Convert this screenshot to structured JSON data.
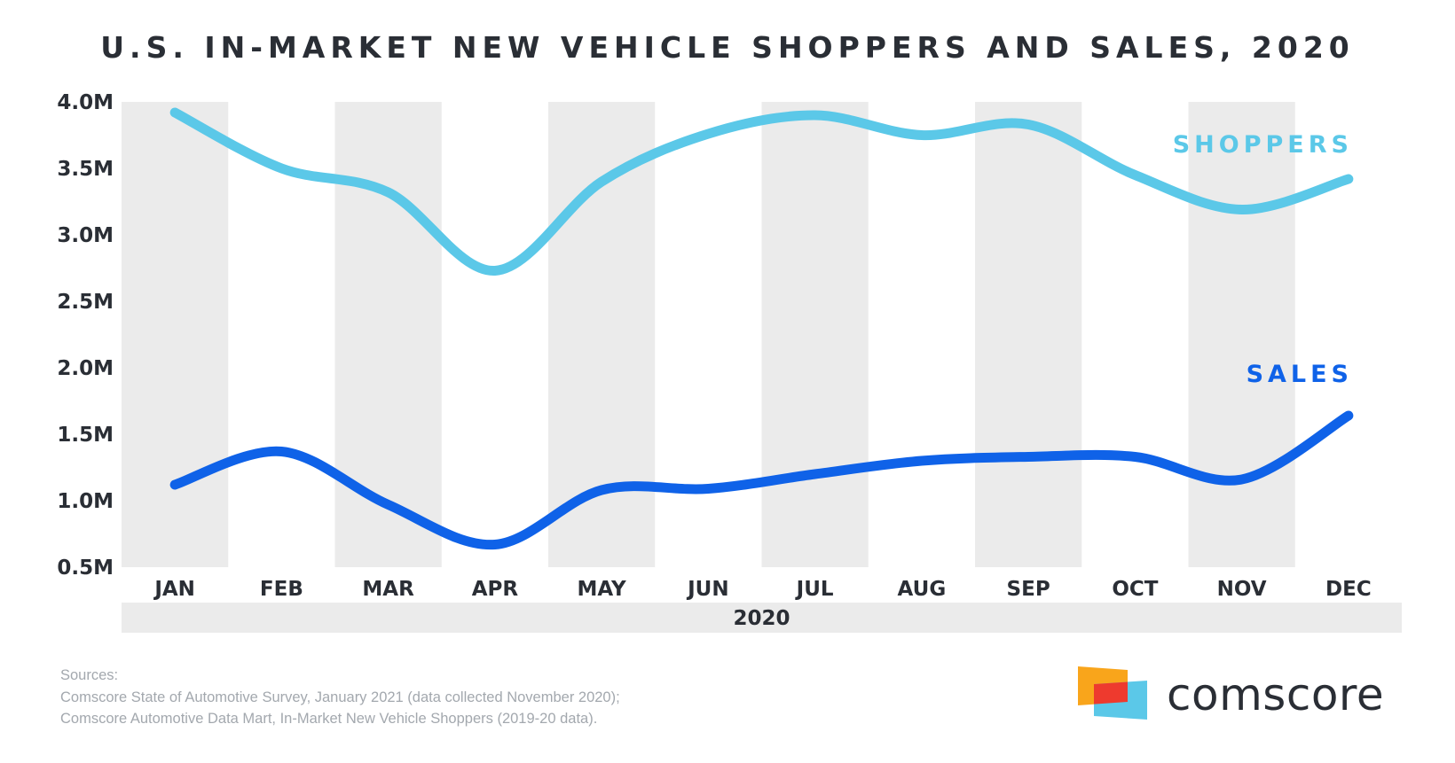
{
  "title": "U.S. IN-MARKET NEW VEHICLE SHOPPERS AND SALES, 2020",
  "chart_data": {
    "type": "line",
    "title": "U.S. IN-MARKET NEW VEHICLE SHOPPERS AND SALES, 2020",
    "xlabel": "2020",
    "ylabel": "",
    "categories": [
      "JAN",
      "FEB",
      "MAR",
      "APR",
      "MAY",
      "JUN",
      "JUL",
      "AUG",
      "SEP",
      "OCT",
      "NOV",
      "DEC"
    ],
    "ylim": [
      0.5,
      4.0
    ],
    "yticks": [
      "4.0M",
      "3.5M",
      "3.0M",
      "2.5M",
      "2.0M",
      "1.5M",
      "1.0M",
      "0.5M"
    ],
    "ytick_values": [
      4.0,
      3.5,
      3.0,
      2.5,
      2.0,
      1.5,
      1.0,
      0.5
    ],
    "alternating_month_shading": true,
    "series": [
      {
        "name": "SHOPPERS",
        "color": "#5bc8e8",
        "values": [
          3.92,
          3.5,
          3.32,
          2.73,
          3.4,
          3.76,
          3.9,
          3.75,
          3.83,
          3.45,
          3.19,
          3.42
        ]
      },
      {
        "name": "SALES",
        "color": "#0f62e8",
        "values": [
          1.12,
          1.37,
          0.97,
          0.67,
          1.08,
          1.09,
          1.2,
          1.3,
          1.33,
          1.33,
          1.16,
          1.64
        ]
      }
    ]
  },
  "footer": {
    "sources_heading": "Sources:",
    "source_lines": [
      "Comscore State of Automotive Survey, January 2021 (data collected November 2020);",
      "Comscore Automotive Data Mart, In-Market New Vehicle Shoppers (2019-20 data)."
    ]
  },
  "logo": {
    "text": "comscore",
    "colors": [
      "#f9a51b",
      "#ee3a2e",
      "#5bc8e8"
    ]
  }
}
